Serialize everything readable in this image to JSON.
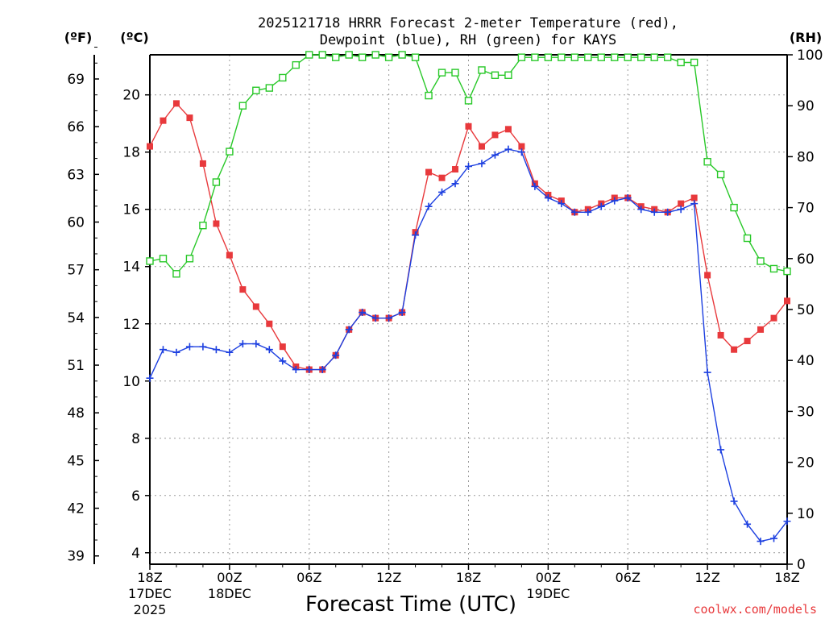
{
  "chart_data": {
    "type": "line",
    "title_line1": "2025121718 HRRR Forecast 2-meter Temperature (red),",
    "title_line2": "Dewpoint (blue), RH (green) for KAYS",
    "xlabel": "Forecast Time (UTC)",
    "watermark": "coolwx.com/models",
    "left_axis_f_label": "(ºF)",
    "left_axis_c_label": "(ºC)",
    "right_axis_label": "(RH)",
    "ylim_c": [
      3.6,
      21.4
    ],
    "ylim_rh": [
      0,
      100
    ],
    "hours": [
      0,
      72
    ],
    "f_ticks": [
      "39",
      "42",
      "45",
      "48",
      "51",
      "54",
      "57",
      "60",
      "63",
      "66",
      "69"
    ],
    "c_ticks": [
      "4",
      "6",
      "8",
      "10",
      "12",
      "14",
      "16",
      "18",
      "20"
    ],
    "rh_ticks": [
      "0",
      "10",
      "20",
      "30",
      "40",
      "50",
      "60",
      "70",
      "80",
      "90",
      "100"
    ],
    "x_ticks": [
      {
        "hour": 0,
        "lines": [
          "18Z",
          "17DEC",
          "2025"
        ]
      },
      {
        "hour": 9,
        "lines": [
          "00Z",
          "18DEC"
        ]
      },
      {
        "hour": 18,
        "lines": [
          "06Z"
        ]
      },
      {
        "hour": 27,
        "lines": [
          "12Z"
        ]
      },
      {
        "hour": 36,
        "lines": [
          "18Z"
        ]
      },
      {
        "hour": 45,
        "lines": [
          "00Z",
          "19DEC"
        ]
      },
      {
        "hour": 54,
        "lines": [
          "06Z"
        ]
      },
      {
        "hour": 63,
        "lines": [
          "12Z"
        ]
      },
      {
        "hour": 72,
        "lines": [
          "18Z"
        ]
      }
    ],
    "series": [
      {
        "name": "Temperature",
        "units": "C",
        "color": "#e8393c",
        "marker": "filled-square",
        "values": [
          18.2,
          19.1,
          19.7,
          19.2,
          17.6,
          15.5,
          14.4,
          13.2,
          12.6,
          12.0,
          11.2,
          10.5,
          10.4,
          10.4,
          10.9,
          11.8,
          12.4,
          12.2,
          12.2,
          12.4,
          15.2,
          17.3,
          17.1,
          17.4,
          18.9,
          18.2,
          18.6,
          18.8,
          18.2,
          16.9,
          16.5,
          16.3,
          15.9,
          16.0,
          16.2,
          16.4,
          16.4,
          16.1,
          16.0,
          15.9,
          16.2,
          16.4,
          13.7,
          11.6,
          11.1,
          11.4,
          11.8,
          12.2,
          12.8
        ]
      },
      {
        "name": "Dewpoint",
        "units": "C",
        "color": "#1c3fe0",
        "marker": "plus",
        "values": [
          10.1,
          11.1,
          11.0,
          11.2,
          11.2,
          11.1,
          11.0,
          11.3,
          11.3,
          11.1,
          10.7,
          10.4,
          10.4,
          10.4,
          10.9,
          11.8,
          12.4,
          12.2,
          12.2,
          12.4,
          15.1,
          16.1,
          16.6,
          16.9,
          17.5,
          17.6,
          17.9,
          18.1,
          18.0,
          16.8,
          16.4,
          16.2,
          15.9,
          15.9,
          16.1,
          16.3,
          16.4,
          16.0,
          15.9,
          15.9,
          16.0,
          16.2,
          10.3,
          7.6,
          5.8,
          5.0,
          4.4,
          4.5,
          5.1
        ]
      },
      {
        "name": "RH",
        "units": "%",
        "color": "#28c828",
        "marker": "open-square",
        "values": [
          59.5,
          60,
          57,
          60,
          66.5,
          75,
          81,
          90,
          93,
          93.5,
          95.5,
          98,
          100,
          100,
          99.5,
          100,
          99.5,
          100,
          99.5,
          100,
          99.5,
          92,
          96.5,
          96.5,
          91,
          97,
          96,
          96,
          99.5,
          99.5,
          99.5,
          99.5,
          99.5,
          99.5,
          99.5,
          99.5,
          99.5,
          99.5,
          99.5,
          99.5,
          98.5,
          98.5,
          79,
          76.5,
          70,
          64,
          59.5,
          58,
          57.5
        ]
      }
    ]
  }
}
